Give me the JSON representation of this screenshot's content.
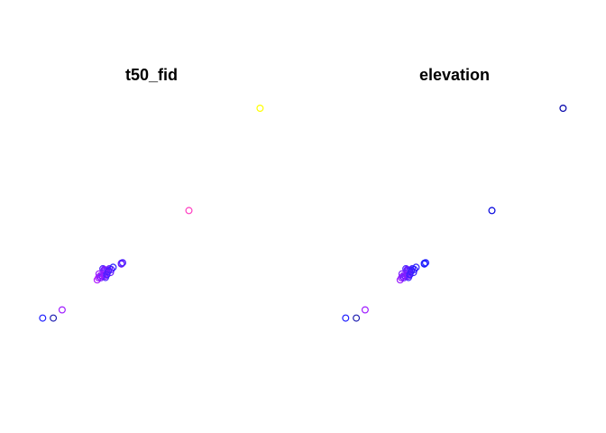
{
  "chart_data": [
    {
      "type": "scatter",
      "title": "t50_fid",
      "point_style": "open-circle",
      "axes_visible": false,
      "grid": false,
      "points": [
        {
          "x": 0.918,
          "y": 0.921,
          "color": "#ffff00"
        },
        {
          "x": 0.644,
          "y": 0.548,
          "color": "#ff3ec1"
        },
        {
          "x": 0.384,
          "y": 0.356,
          "color": "#6b1fff"
        },
        {
          "x": 0.384,
          "y": 0.353,
          "color": "#6b1fff"
        },
        {
          "x": 0.389,
          "y": 0.358,
          "color": "#4a1fff"
        },
        {
          "x": 0.313,
          "y": 0.336,
          "color": "#4a1fff"
        },
        {
          "x": 0.318,
          "y": 0.333,
          "color": "#7a1fff"
        },
        {
          "x": 0.321,
          "y": 0.331,
          "color": "#7a1fff"
        },
        {
          "x": 0.32,
          "y": 0.329,
          "color": "#7a1fff"
        },
        {
          "x": 0.327,
          "y": 0.329,
          "color": "#7a1fff"
        },
        {
          "x": 0.334,
          "y": 0.331,
          "color": "#6b1fff"
        },
        {
          "x": 0.338,
          "y": 0.336,
          "color": "#6b1fff"
        },
        {
          "x": 0.345,
          "y": 0.333,
          "color": "#4a1fff"
        },
        {
          "x": 0.352,
          "y": 0.341,
          "color": "#2a1fff"
        },
        {
          "x": 0.342,
          "y": 0.322,
          "color": "#6b1fff"
        },
        {
          "x": 0.327,
          "y": 0.317,
          "color": "#9b1fff"
        },
        {
          "x": 0.321,
          "y": 0.309,
          "color": "#9b1fff"
        },
        {
          "x": 0.316,
          "y": 0.314,
          "color": "#9b1fff"
        },
        {
          "x": 0.305,
          "y": 0.312,
          "color": "#9b1fff"
        },
        {
          "x": 0.318,
          "y": 0.321,
          "color": "#7a1fff"
        },
        {
          "x": 0.296,
          "y": 0.303,
          "color": "#b01fff"
        },
        {
          "x": 0.291,
          "y": 0.295,
          "color": "#b01fff"
        },
        {
          "x": 0.323,
          "y": 0.304,
          "color": "#4a1fff"
        },
        {
          "x": 0.305,
          "y": 0.303,
          "color": "#7a1fff"
        },
        {
          "x": 0.311,
          "y": 0.309,
          "color": "#6b1fff"
        },
        {
          "x": 0.333,
          "y": 0.326,
          "color": "#4a1fff"
        },
        {
          "x": 0.298,
          "y": 0.317,
          "color": "#9b1fff"
        },
        {
          "x": 0.328,
          "y": 0.314,
          "color": "#4a1fff"
        },
        {
          "x": 0.3,
          "y": 0.307,
          "color": "#9b1fff"
        },
        {
          "x": 0.156,
          "y": 0.186,
          "color": "#a01fff"
        },
        {
          "x": 0.081,
          "y": 0.156,
          "color": "#1f1fff"
        },
        {
          "x": 0.122,
          "y": 0.156,
          "color": "#1f1fb0"
        }
      ]
    },
    {
      "type": "scatter",
      "title": "elevation",
      "point_style": "open-circle",
      "axes_visible": false,
      "grid": false,
      "points": [
        {
          "x": 0.918,
          "y": 0.921,
          "color": "#0000aa"
        },
        {
          "x": 0.644,
          "y": 0.548,
          "color": "#0000dd"
        },
        {
          "x": 0.384,
          "y": 0.356,
          "color": "#2020ff"
        },
        {
          "x": 0.384,
          "y": 0.353,
          "color": "#2020ff"
        },
        {
          "x": 0.389,
          "y": 0.358,
          "color": "#2020ff"
        },
        {
          "x": 0.313,
          "y": 0.336,
          "color": "#4a1fff"
        },
        {
          "x": 0.318,
          "y": 0.333,
          "color": "#6b1fff"
        },
        {
          "x": 0.321,
          "y": 0.331,
          "color": "#6b1fff"
        },
        {
          "x": 0.32,
          "y": 0.329,
          "color": "#6b1fff"
        },
        {
          "x": 0.327,
          "y": 0.329,
          "color": "#4a1fff"
        },
        {
          "x": 0.334,
          "y": 0.331,
          "color": "#4a1fff"
        },
        {
          "x": 0.338,
          "y": 0.336,
          "color": "#3a1fff"
        },
        {
          "x": 0.345,
          "y": 0.333,
          "color": "#2a1fff"
        },
        {
          "x": 0.352,
          "y": 0.341,
          "color": "#2a1fff"
        },
        {
          "x": 0.342,
          "y": 0.322,
          "color": "#3a1fff"
        },
        {
          "x": 0.327,
          "y": 0.317,
          "color": "#7a1fff"
        },
        {
          "x": 0.321,
          "y": 0.309,
          "color": "#7a1fff"
        },
        {
          "x": 0.316,
          "y": 0.314,
          "color": "#8a1fff"
        },
        {
          "x": 0.305,
          "y": 0.312,
          "color": "#8a1fff"
        },
        {
          "x": 0.318,
          "y": 0.321,
          "color": "#6b1fff"
        },
        {
          "x": 0.296,
          "y": 0.303,
          "color": "#9b1fff"
        },
        {
          "x": 0.291,
          "y": 0.295,
          "color": "#9b1fff"
        },
        {
          "x": 0.323,
          "y": 0.304,
          "color": "#3a1fff"
        },
        {
          "x": 0.305,
          "y": 0.303,
          "color": "#6b1fff"
        },
        {
          "x": 0.311,
          "y": 0.309,
          "color": "#6b1fff"
        },
        {
          "x": 0.333,
          "y": 0.326,
          "color": "#3a1fff"
        },
        {
          "x": 0.298,
          "y": 0.317,
          "color": "#7a1fff"
        },
        {
          "x": 0.328,
          "y": 0.314,
          "color": "#3a1fff"
        },
        {
          "x": 0.3,
          "y": 0.307,
          "color": "#8a1fff"
        },
        {
          "x": 0.156,
          "y": 0.186,
          "color": "#a01fff"
        },
        {
          "x": 0.081,
          "y": 0.156,
          "color": "#1f1fff"
        },
        {
          "x": 0.122,
          "y": 0.156,
          "color": "#1f1fb0"
        }
      ]
    }
  ]
}
